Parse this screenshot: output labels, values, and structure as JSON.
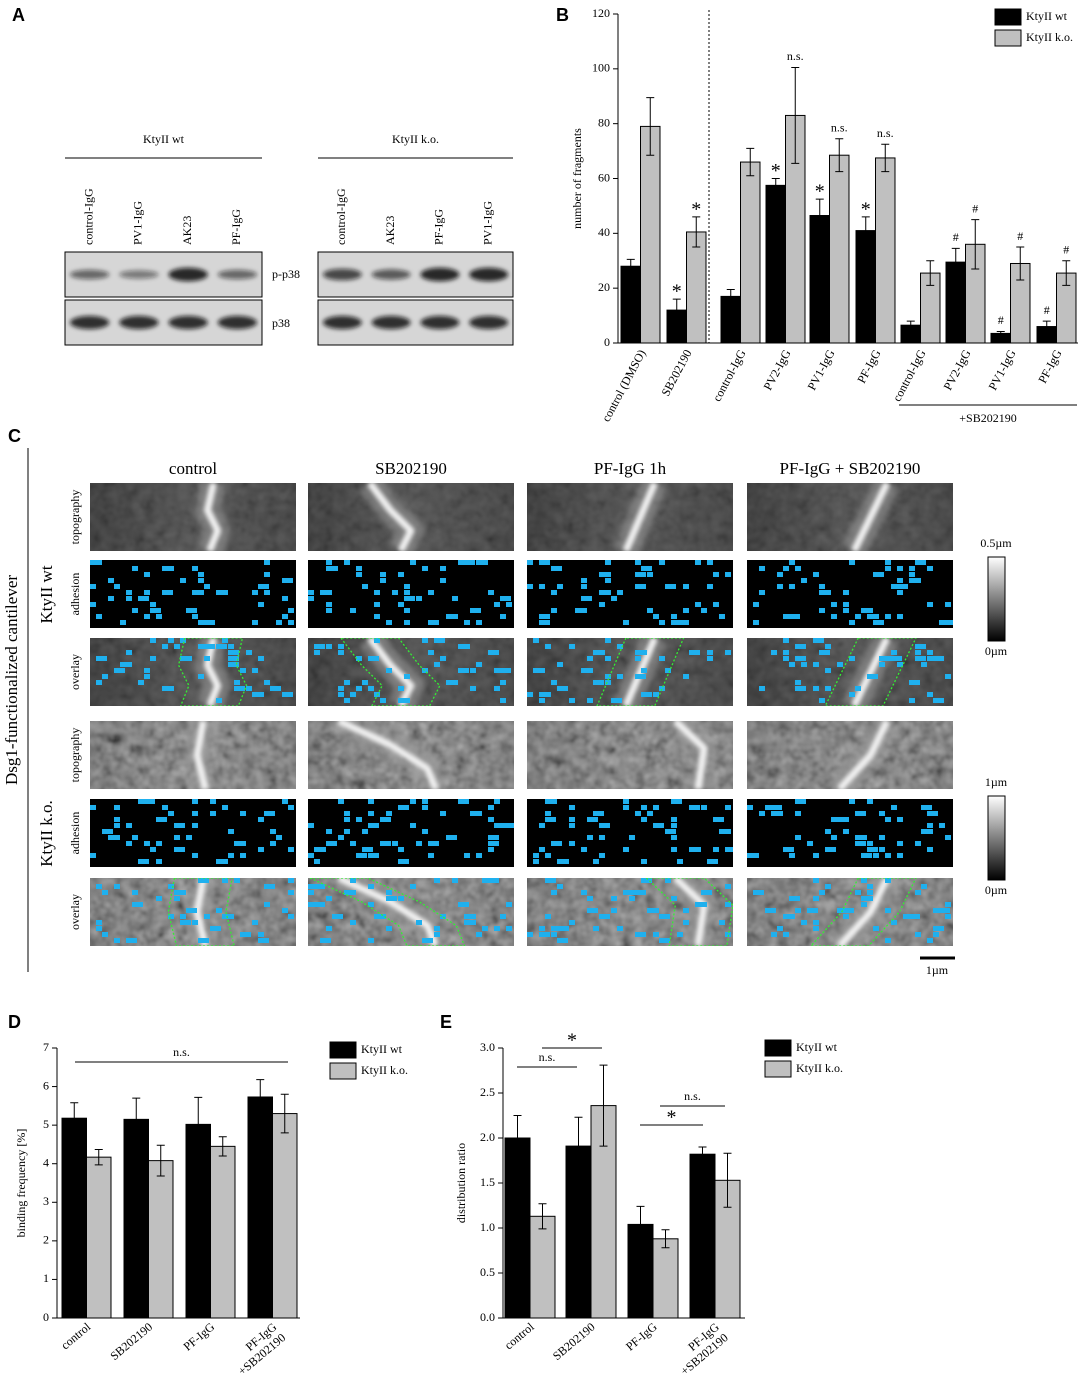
{
  "panel_a": {
    "panel": "A",
    "groups": [
      {
        "title": "KtyII wt",
        "lanes": [
          "control-IgG",
          "PV1-IgG",
          "AK23",
          "PF-IgG"
        ]
      },
      {
        "title": "KtyII k.o.",
        "lanes": [
          "control-IgG",
          "AK23",
          "PF-IgG",
          "PV1-IgG"
        ]
      }
    ],
    "rows": [
      "p-p38",
      "p38"
    ]
  },
  "chart_data": [
    {
      "type": "bar",
      "panel": "B",
      "y_label": "number of fragments",
      "categories": [
        "control (DMSO)",
        "SB202190",
        "control-IgG",
        "PV2-IgG",
        "PV1-IgG",
        "PF-IgG",
        "control-IgG",
        "PV2-IgG",
        "PV1-IgG",
        "PF-IgG"
      ],
      "bracket_label": "+SB202190",
      "series": [
        {
          "name": "KtyII wt",
          "color": "#000000",
          "values": [
            28,
            12,
            17,
            57.5,
            46.5,
            41,
            6.5,
            29.5,
            3.5,
            6
          ],
          "errors": [
            2.5,
            4,
            2.5,
            2.5,
            6,
            5,
            1.5,
            5,
            0.7,
            2
          ],
          "significance": [
            null,
            "*",
            null,
            "*",
            "*",
            "*",
            null,
            "#",
            "#",
            "#"
          ]
        },
        {
          "name": "KtyII k.o.",
          "color": "#c0c0c0",
          "values": [
            79,
            40.5,
            66,
            83,
            68.5,
            67.5,
            25.5,
            36,
            29,
            25.5
          ],
          "errors": [
            10.5,
            5.5,
            5,
            17.5,
            6,
            5,
            4.5,
            9,
            6,
            4.5
          ],
          "significance": [
            null,
            "*",
            null,
            "n.s.",
            "n.s.",
            "n.s.",
            null,
            "#",
            "#",
            "#"
          ]
        }
      ],
      "ylim": [
        0,
        120
      ],
      "yticks": [
        0,
        20,
        40,
        60,
        80,
        100,
        120
      ]
    },
    {
      "type": "bar",
      "panel": "D",
      "y_label": "binding frequency [%]",
      "categories": [
        "control",
        "SB202190",
        "PF-IgG",
        "PF-IgG\n+SB202190"
      ],
      "comparison_labels": [
        "n.s."
      ],
      "series": [
        {
          "name": "KtyII wt",
          "color": "#000000",
          "values": [
            5.18,
            5.15,
            5.02,
            5.73
          ],
          "errors": [
            0.4,
            0.55,
            0.7,
            0.45
          ]
        },
        {
          "name": "KtyII k.o.",
          "color": "#c0c0c0",
          "values": [
            4.17,
            4.08,
            4.45,
            5.3
          ],
          "errors": [
            0.2,
            0.4,
            0.25,
            0.5
          ]
        }
      ],
      "ylim": [
        0,
        7
      ],
      "yticks": [
        0,
        1,
        2,
        3,
        4,
        5,
        6,
        7
      ]
    },
    {
      "type": "bar",
      "panel": "E",
      "y_label": "distribution ratio",
      "categories": [
        "control",
        "SB202190",
        "PF-IgG",
        "PF-IgG\n+SB202190"
      ],
      "comparison_labels": [
        "n.s.",
        "*",
        "*",
        "n.s."
      ],
      "series": [
        {
          "name": "KtyII wt",
          "color": "#000000",
          "values": [
            2.0,
            1.91,
            1.04,
            1.82
          ],
          "errors": [
            0.25,
            0.32,
            0.2,
            0.08
          ]
        },
        {
          "name": "KtyII k.o.",
          "color": "#c0c0c0",
          "values": [
            1.13,
            2.36,
            0.88,
            1.53
          ],
          "errors": [
            0.14,
            0.45,
            0.1,
            0.3
          ]
        }
      ],
      "ylim": [
        0,
        3
      ],
      "yticks": [
        {
          "value": 0,
          "label": "0.0"
        },
        0.5,
        {
          "value": 1,
          "label": "1.0"
        },
        1.5,
        {
          "value": 2,
          "label": "2.0"
        },
        2.5,
        {
          "value": 3,
          "label": "3.0"
        }
      ]
    }
  ],
  "panel_c": {
    "panel": "C",
    "side_label": "Dsg1-functionalized cantilever",
    "columns": [
      "control",
      "SB202190",
      "PF-IgG 1h",
      "PF-IgG + SB202190"
    ],
    "groups": [
      {
        "label": "KtyII wt",
        "rows": [
          "topography",
          "adhesion",
          "overlay"
        ],
        "scale": [
          "0.5µm",
          "0µm"
        ]
      },
      {
        "label": "KtyII k.o.",
        "rows": [
          "topography",
          "adhesion",
          "overlay"
        ],
        "scale": [
          "1µm",
          "0µm"
        ]
      }
    ],
    "scale_bar": "1µm"
  }
}
